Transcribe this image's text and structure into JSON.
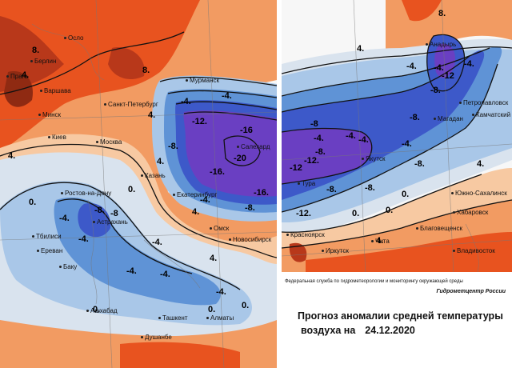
{
  "forecast": {
    "agency": "Федеральная служба по гидрометеорологии и мониторингу окружающей среды",
    "center": "Гидрометцентр России",
    "title": "Прогноз аномалии средней температуры",
    "subtitle_prefix": "воздуха на",
    "date": "24.12.2020"
  },
  "colors": {
    "warm_strong": "#e8531f",
    "warm": "#f29b62",
    "warm_light": "#f7c9a2",
    "neutral": "#d9e3ee",
    "cold_light": "#a9c7e8",
    "cold": "#5f93d6",
    "cold_strong": "#3d59c9",
    "cold_extreme": "#6a3fc2"
  },
  "cities_left": [
    {
      "name": "Осло"
    },
    {
      "name": "Берлин"
    },
    {
      "name": "Варшава"
    },
    {
      "name": "Прага"
    },
    {
      "name": "Санкт-Петербург"
    },
    {
      "name": "Мурманск"
    },
    {
      "name": "Минск"
    },
    {
      "name": "Киев"
    },
    {
      "name": "Москва"
    },
    {
      "name": "Казань"
    },
    {
      "name": "Ростов-на-Дону"
    },
    {
      "name": "Астрахань"
    },
    {
      "name": "Тбилиси"
    },
    {
      "name": "Ереван"
    },
    {
      "name": "Баку"
    },
    {
      "name": "Екатеринбург"
    },
    {
      "name": "Омск"
    },
    {
      "name": "Новосибирск"
    },
    {
      "name": "Салехард"
    },
    {
      "name": "Ашхабад"
    },
    {
      "name": "Ташкент"
    },
    {
      "name": "Алматы"
    },
    {
      "name": "Душанбе"
    }
  ],
  "cities_right": [
    {
      "name": "Анадырь"
    },
    {
      "name": "Петропавловск"
    },
    {
      "name": "Магадан"
    },
    {
      "name": "Камчатский"
    },
    {
      "name": "Якутск"
    },
    {
      "name": "Тура"
    },
    {
      "name": "Красноярск"
    },
    {
      "name": "Иркутск"
    },
    {
      "name": "Чита"
    },
    {
      "name": "Благовещенск"
    },
    {
      "name": "Южно-Сахалинск"
    },
    {
      "name": "Хабаровск"
    },
    {
      "name": "Владивосток"
    }
  ],
  "isolines_left": [
    "-4.",
    "-4.",
    "-8.",
    "-12.",
    "-16",
    "-20",
    "-16.",
    "-16.",
    "-8.",
    "-4.",
    "-8",
    "-4.",
    "-4.",
    "-4.",
    "-4.",
    "-4.",
    "0.",
    "0.",
    "0.",
    "0.",
    "0.",
    "4.",
    "4.",
    "4.",
    "4.",
    "4.",
    "8.",
    "8.",
    "4.",
    "-8.",
    "-4."
  ],
  "isolines_right": [
    "-4.",
    "-8.",
    "-12",
    "-8.",
    "-4.",
    "-12.",
    "-8.",
    "-4.",
    "-12",
    "-4.",
    "-8.",
    "-4.",
    "-8.",
    "-4.",
    "-8.",
    "-12.",
    "-4.",
    "0.",
    "0.",
    "4.",
    "4.",
    "4.",
    "0.",
    "8.",
    "-8"
  ]
}
